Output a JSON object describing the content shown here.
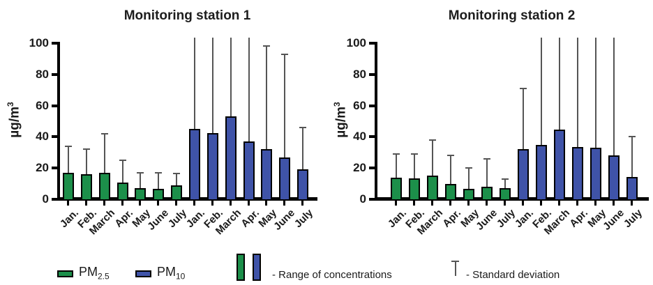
{
  "figure": {
    "legend": {
      "pm25_base": "PM",
      "pm25_sub": "2.5",
      "pm10_base": "PM",
      "pm10_sub": "10",
      "range_label": "- Range of concentrations",
      "sd_label": "- Standard deviation"
    },
    "colors": {
      "pm25": "#1c8f4a",
      "pm10": "#3f53a8",
      "bar_border": "#000000",
      "error_bar": "#555555",
      "axis": "#000000"
    }
  },
  "chart_data": [
    {
      "type": "bar",
      "title": "Monitoring station 1",
      "ylabel_base": "µg/m",
      "ylabel_sup": "3",
      "ylim": [
        0,
        100
      ],
      "yticks": [
        0,
        20,
        40,
        60,
        80,
        100
      ],
      "grid": false,
      "legend_position": "bottom-shared",
      "categories": [
        "Jan.",
        "Feb.",
        "March",
        "Apr.",
        "May",
        "June",
        "July"
      ],
      "series": [
        {
          "name": "PM2.5",
          "color_key": "pm25",
          "values": [
            17,
            16,
            17,
            10.5,
            7,
            6.5,
            9
          ],
          "error_top": [
            34,
            32,
            42,
            25,
            17,
            17,
            16.5
          ]
        },
        {
          "name": "PM10",
          "color_key": "pm10",
          "values": [
            45,
            42.5,
            53,
            37,
            32,
            27,
            19
          ],
          "error_top": [
            100,
            100,
            100,
            100,
            98,
            93,
            46
          ]
        }
      ]
    },
    {
      "type": "bar",
      "title": "Monitoring station 2",
      "ylabel_base": "µg/m",
      "ylabel_sup": "3",
      "ylim": [
        0,
        100
      ],
      "yticks": [
        0,
        20,
        40,
        60,
        80,
        100
      ],
      "grid": false,
      "legend_position": "bottom-shared",
      "categories": [
        "Jan.",
        "Feb.",
        "March",
        "Apr.",
        "May",
        "June",
        "July"
      ],
      "series": [
        {
          "name": "PM2.5",
          "color_key": "pm25",
          "values": [
            14,
            13.5,
            15,
            10,
            6.5,
            8,
            7
          ],
          "error_top": [
            29,
            29,
            38,
            28,
            20,
            26,
            13
          ]
        },
        {
          "name": "PM10",
          "color_key": "pm10",
          "values": [
            32,
            35,
            44.5,
            33.5,
            33,
            28,
            14.5
          ],
          "error_top": [
            71,
            100,
            100,
            100,
            100,
            100,
            40
          ]
        }
      ]
    }
  ]
}
